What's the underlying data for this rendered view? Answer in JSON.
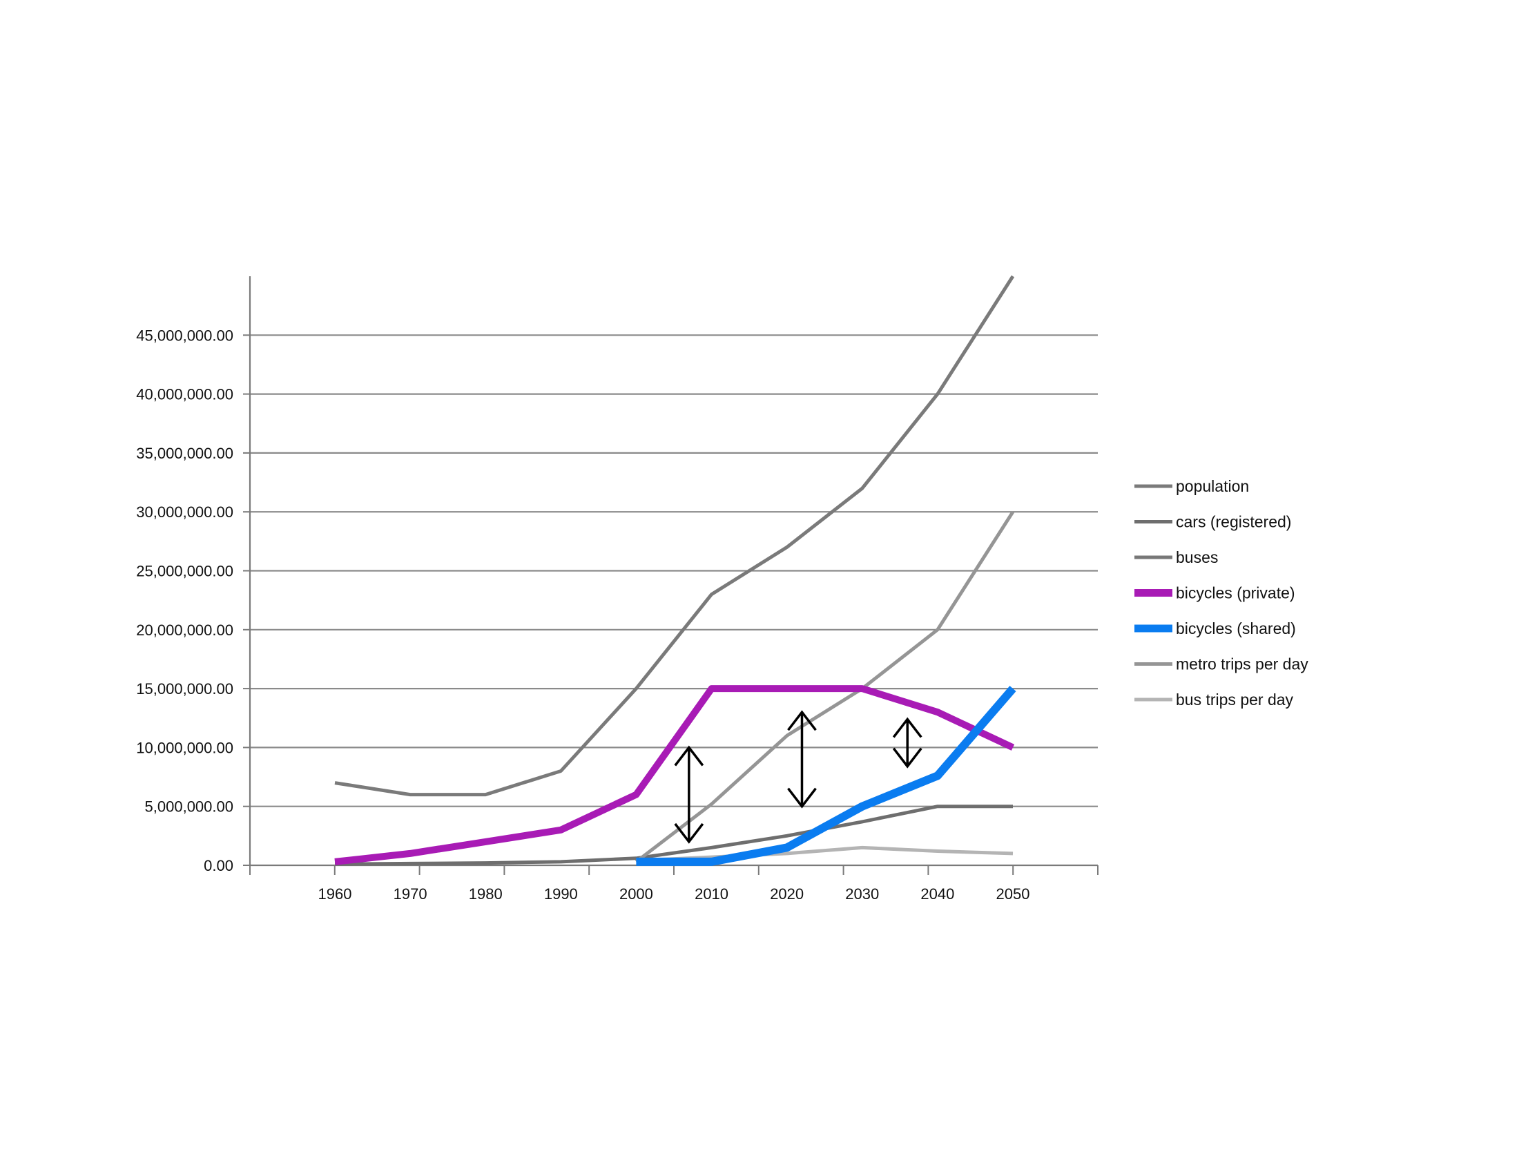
{
  "chart_data": {
    "type": "line",
    "title": "",
    "xlabel": "",
    "ylabel": "",
    "x": [
      1960,
      1970,
      1980,
      1990,
      2000,
      2010,
      2020,
      2030,
      2040,
      2050
    ],
    "x_tick_labels": [
      "1960",
      "1970",
      "1980",
      "1990",
      "2000",
      "2010",
      "2020",
      "2030",
      "2040",
      "2050"
    ],
    "ylim": [
      0,
      50000000
    ],
    "y_ticks": [
      0,
      5000000,
      10000000,
      15000000,
      20000000,
      25000000,
      30000000,
      35000000,
      40000000,
      45000000
    ],
    "y_tick_labels": [
      "0.00",
      "5,000,000.00",
      "10,000,000.00",
      "15,000,000.00",
      "20,000,000.00",
      "25,000,000.00",
      "30,000,000.00",
      "35,000,000.00",
      "40,000,000.00",
      "45,000,000.00"
    ],
    "grid": true,
    "legend_position": "right",
    "series": [
      {
        "name": "population",
        "color": "#7a7a7a",
        "values": [
          7000000,
          6000000,
          6000000,
          8000000,
          15000000,
          23000000,
          27000000,
          32000000,
          40000000,
          50000000
        ]
      },
      {
        "name": "cars (registered)",
        "color": "#6e6e6e",
        "values": [
          100000,
          150000,
          200000,
          300000,
          600000,
          1500000,
          2500000,
          3700000,
          5000000,
          5000000
        ]
      },
      {
        "name": "buses",
        "color": "#777777",
        "values": [
          null,
          null,
          null,
          null,
          null,
          null,
          null,
          null,
          null,
          null
        ]
      },
      {
        "name": "bicycles (private)",
        "color": "#a81bb5",
        "values": [
          300000,
          1000000,
          2000000,
          3000000,
          6000000,
          15000000,
          15000000,
          15000000,
          13000000,
          10000000
        ]
      },
      {
        "name": "bicycles (shared)",
        "color": "#0a7cf0",
        "values": [
          null,
          null,
          null,
          null,
          300000,
          300000,
          1500000,
          5000000,
          7600000,
          15000000
        ]
      },
      {
        "name": "metro trips per day",
        "color": "#959595",
        "values": [
          null,
          null,
          null,
          null,
          300000,
          5200000,
          11000000,
          15000000,
          20000000,
          30000000
        ]
      },
      {
        "name": "bus trips per day",
        "color": "#b4b4b4",
        "values": [
          null,
          null,
          null,
          null,
          400000,
          700000,
          1000000,
          1500000,
          1200000,
          1000000
        ]
      }
    ],
    "annotations": [
      {
        "type": "double-arrow",
        "x": 2007,
        "y_from": 2000000,
        "y_to": 10000000
      },
      {
        "type": "double-arrow",
        "x": 2022,
        "y_from": 5000000,
        "y_to": 13000000
      },
      {
        "type": "double-arrow",
        "x": 2036,
        "y_from": 8400000,
        "y_to": 12400000
      }
    ]
  }
}
